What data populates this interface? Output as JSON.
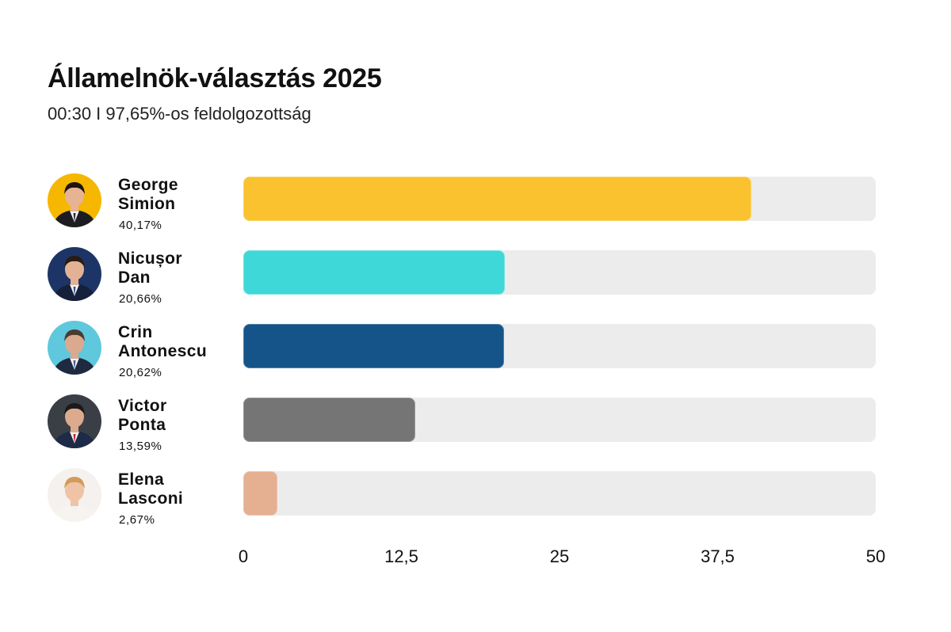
{
  "title": "Államelnök-választás 2025",
  "subtitle": "00:30 I 97,65%-os feldolgozottság",
  "chart_data": {
    "type": "bar",
    "orientation": "horizontal",
    "categories": [
      "George Simion",
      "Nicușor Dan",
      "Crin Antonescu",
      "Victor Ponta",
      "Elena Lasconi"
    ],
    "values": [
      40.17,
      20.66,
      20.62,
      13.59,
      2.67
    ],
    "value_labels": [
      "40,17%",
      "20,66%",
      "20,62%",
      "13,59%",
      "2,67%"
    ],
    "xlim": [
      0,
      50
    ],
    "ticks": [
      0,
      12.5,
      25,
      37.5,
      50
    ],
    "tick_labels": [
      "0",
      "12,5",
      "25",
      "37,5",
      "50"
    ],
    "grid": false,
    "legend": "none"
  },
  "candidates": [
    {
      "first": "George",
      "last": "Simion",
      "pct": "40,17%",
      "value": 40.17,
      "color": "#fbc22f",
      "avatar_bg": "#f6b700",
      "suit": "#1c1c22",
      "tie": "#2a2a30",
      "hair": "#1b1410",
      "skin": "#e6b393",
      "icon": "portrait-george-simion"
    },
    {
      "first": "Nicușor",
      "last": "Dan",
      "pct": "20,66%",
      "value": 20.66,
      "color": "#3fd8d8",
      "avatar_bg": "#1d3566",
      "suit": "#15203a",
      "tie": "#2d4e8a",
      "hair": "#2a1c12",
      "skin": "#e3b296",
      "icon": "portrait-nicusor-dan"
    },
    {
      "first": "Crin",
      "last": "Antonescu",
      "pct": "20,62%",
      "value": 20.62,
      "color": "#155489",
      "avatar_bg": "#5fc8dc",
      "suit": "#1e2a40",
      "tie": "#3c5ea6",
      "hair": "#4a3a30",
      "skin": "#dba98e",
      "icon": "portrait-crin-antonescu"
    },
    {
      "first": "Victor",
      "last": "Ponta",
      "pct": "13,59%",
      "value": 13.59,
      "color": "#757575",
      "avatar_bg": "#3a3f46",
      "suit": "#1d2a48",
      "tie": "#c0232b",
      "hair": "#1a1a1a",
      "skin": "#dcaa8c",
      "icon": "portrait-victor-ponta"
    },
    {
      "first": "Elena",
      "last": "Lasconi",
      "pct": "2,67%",
      "value": 2.67,
      "color": "#e5af92",
      "avatar_bg": "#f4f1ee",
      "suit": "#f7f4f0",
      "tie": "#f7f4f0",
      "hair": "#d39a5a",
      "skin": "#eec3a6",
      "icon": "portrait-elena-lasconi"
    }
  ]
}
